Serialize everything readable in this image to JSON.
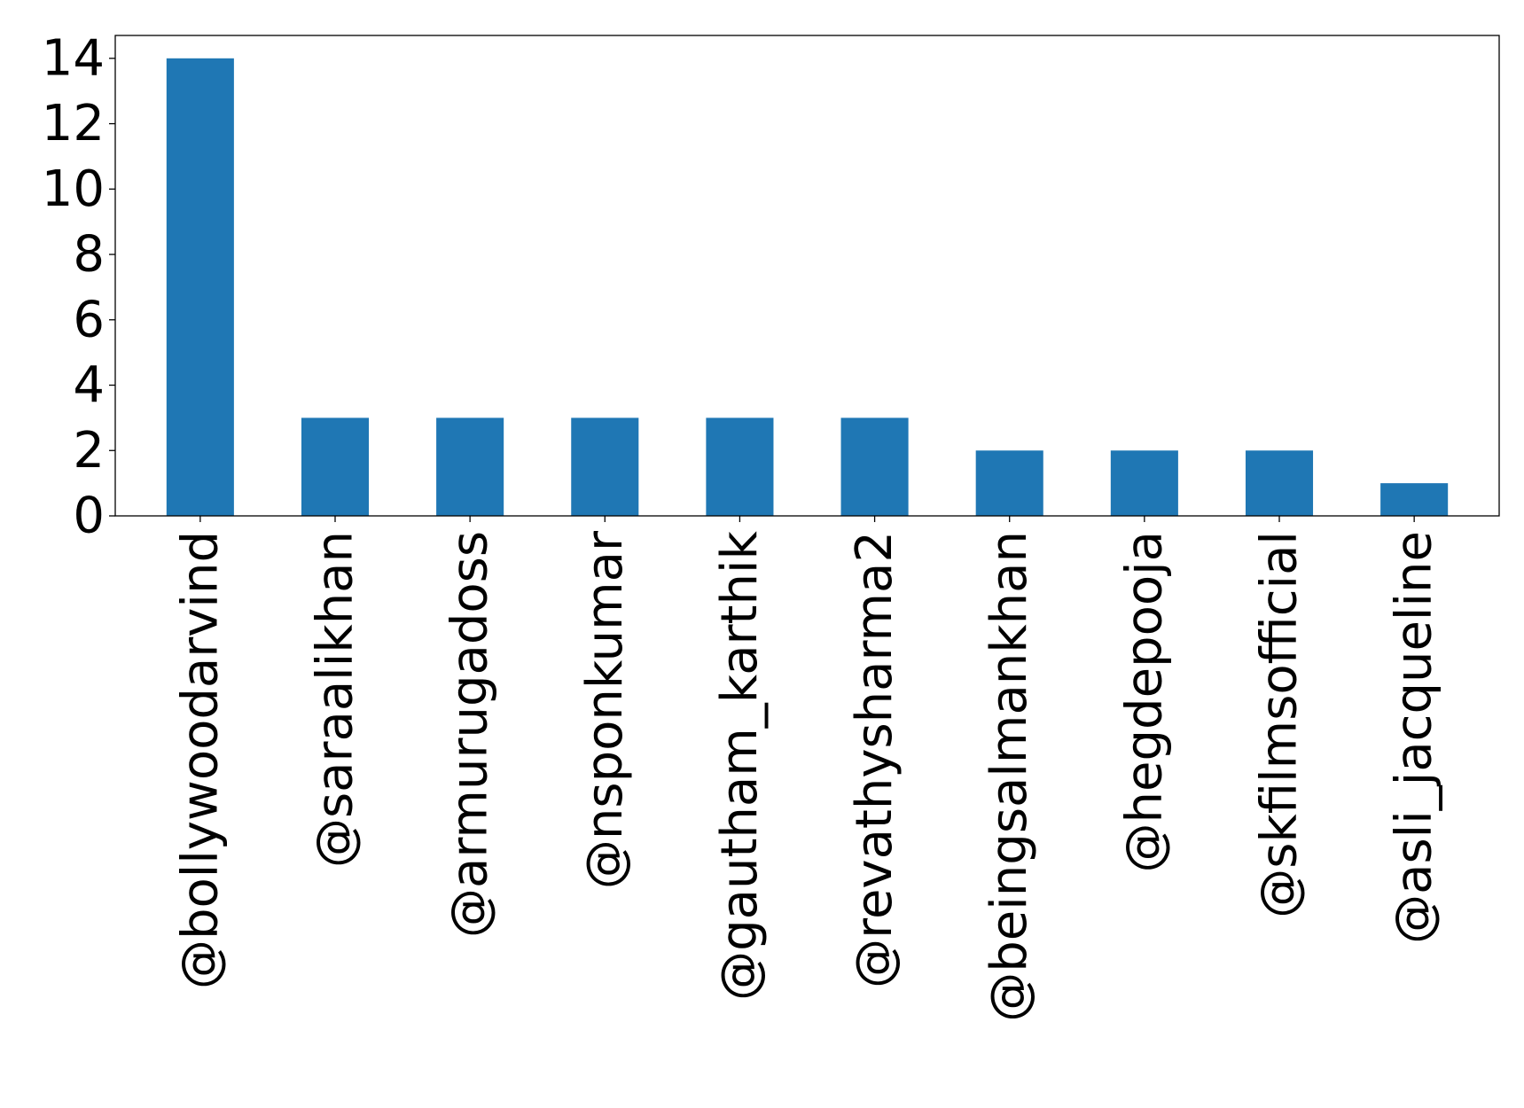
{
  "chart_data": {
    "type": "bar",
    "title": "",
    "xlabel": "",
    "ylabel": "",
    "categories": [
      "@bollywoodarvind",
      "@saraalikhan",
      "@armurugadoss",
      "@nsponkumar",
      "@gautham_karthik",
      "@revathysharma2",
      "@beingsalmankhan",
      "@hegdepooja",
      "@skfilmsofficial",
      "@asli_jacqueline"
    ],
    "values": [
      14,
      3,
      3,
      3,
      3,
      3,
      2,
      2,
      2,
      1
    ],
    "ylim": [
      0,
      14.7
    ],
    "yticks": [
      0,
      2,
      4,
      6,
      8,
      10,
      12,
      14
    ],
    "grid": false,
    "legend": "none",
    "bar_color": "#1f77b4"
  }
}
